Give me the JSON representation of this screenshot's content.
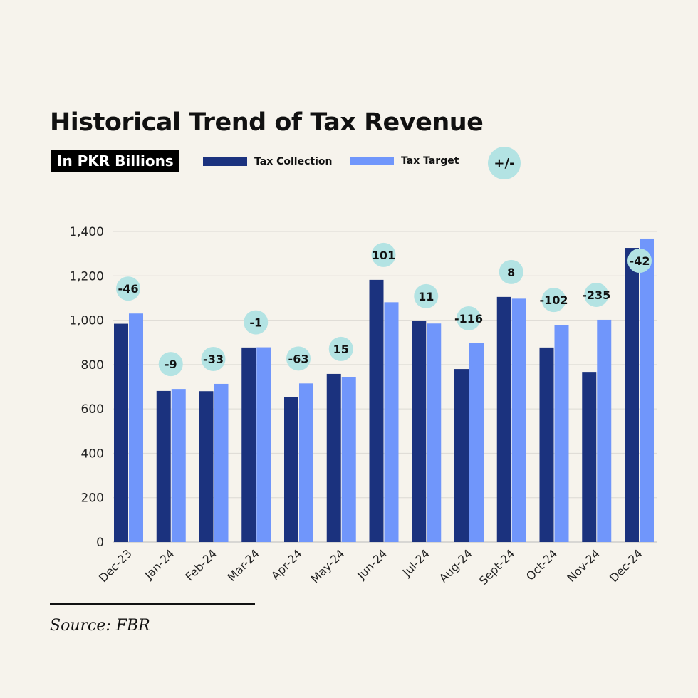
{
  "chart_data": {
    "type": "bar",
    "title": "Historical Trend of Tax Revenue",
    "subtitle": "In PKR Billions",
    "xlabel": "",
    "ylabel": "",
    "ylim": [
      0,
      1400
    ],
    "yticks": [
      0,
      200,
      400,
      600,
      800,
      1000,
      1200,
      1400
    ],
    "ytick_labels": [
      "0",
      "200",
      "400",
      "600",
      "800",
      "1,000",
      "1,200",
      "1,400"
    ],
    "grid": true,
    "legend_placement": "top",
    "categories": [
      "Dec-23",
      "Jan-24",
      "Feb-24",
      "Mar-24",
      "Apr-24",
      "May-24",
      "Jun-24",
      "Jul-24",
      "Aug-24",
      "Sept-24",
      "Oct-24",
      "Nov-24",
      "Dec-24"
    ],
    "series": [
      {
        "name": "Tax Collection",
        "color": "#1b327e",
        "values": [
          984,
          681,
          680,
          877,
          652,
          758,
          1182,
          996,
          780,
          1105,
          877,
          767,
          1326
        ]
      },
      {
        "name": "Tax Target",
        "color": "#7096fb",
        "values": [
          1030,
          690,
          713,
          878,
          715,
          743,
          1081,
          985,
          896,
          1097,
          979,
          1002,
          1368
        ]
      }
    ],
    "difference": {
      "name": "+/-",
      "color": "#b3e3e3",
      "labels": [
        "-46",
        "-9",
        "-33",
        "-1",
        "-63",
        "15",
        "101",
        "11",
        "-116",
        "8",
        "-102",
        "-235",
        "-42"
      ]
    }
  },
  "source": "Source: FBR"
}
